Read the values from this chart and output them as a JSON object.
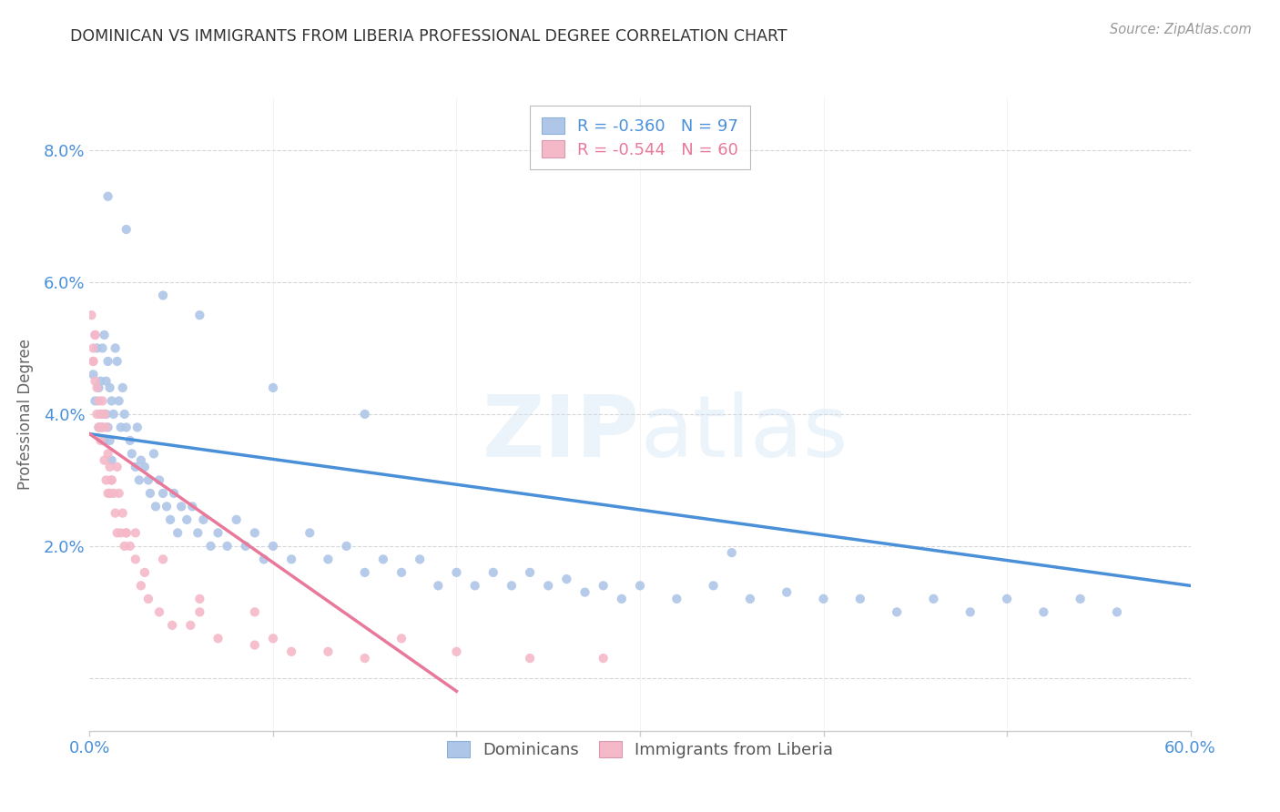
{
  "title": "DOMINICAN VS IMMIGRANTS FROM LIBERIA PROFESSIONAL DEGREE CORRELATION CHART",
  "source": "Source: ZipAtlas.com",
  "ylabel": "Professional Degree",
  "yticks": [
    0.0,
    0.02,
    0.04,
    0.06,
    0.08
  ],
  "ytick_labels": [
    "",
    "2.0%",
    "4.0%",
    "6.0%",
    "8.0%"
  ],
  "xmin": 0.0,
  "xmax": 0.6,
  "ymin": -0.008,
  "ymax": 0.088,
  "dominicans_color": "#aec6e8",
  "liberia_color": "#f4b8c8",
  "trend_dominicans_color": "#4a90d9",
  "trend_liberia_color": "#e8799a",
  "background_color": "#ffffff",
  "grid_color": "#cccccc",
  "axis_label_color": "#4a90d9",
  "watermark": "ZIPatlas",
  "dom_trend_x0": 0.0,
  "dom_trend_y0": 0.037,
  "dom_trend_x1": 0.6,
  "dom_trend_y1": 0.014,
  "lib_trend_x0": 0.0,
  "lib_trend_y0": 0.037,
  "lib_trend_x1": 0.2,
  "lib_trend_y1": -0.002,
  "dominicans_x": [
    0.002,
    0.003,
    0.004,
    0.005,
    0.005,
    0.006,
    0.006,
    0.007,
    0.007,
    0.008,
    0.008,
    0.009,
    0.009,
    0.01,
    0.01,
    0.011,
    0.011,
    0.012,
    0.012,
    0.013,
    0.014,
    0.015,
    0.016,
    0.017,
    0.018,
    0.019,
    0.02,
    0.022,
    0.023,
    0.025,
    0.026,
    0.027,
    0.028,
    0.03,
    0.032,
    0.033,
    0.035,
    0.036,
    0.038,
    0.04,
    0.042,
    0.044,
    0.046,
    0.048,
    0.05,
    0.053,
    0.056,
    0.059,
    0.062,
    0.066,
    0.07,
    0.075,
    0.08,
    0.085,
    0.09,
    0.095,
    0.1,
    0.11,
    0.12,
    0.13,
    0.14,
    0.15,
    0.16,
    0.17,
    0.18,
    0.19,
    0.2,
    0.21,
    0.22,
    0.23,
    0.24,
    0.25,
    0.26,
    0.27,
    0.28,
    0.29,
    0.3,
    0.32,
    0.34,
    0.36,
    0.38,
    0.4,
    0.42,
    0.44,
    0.46,
    0.48,
    0.5,
    0.52,
    0.54,
    0.56,
    0.01,
    0.02,
    0.04,
    0.06,
    0.1,
    0.15,
    0.35
  ],
  "dominicans_y": [
    0.046,
    0.042,
    0.05,
    0.038,
    0.044,
    0.045,
    0.04,
    0.05,
    0.038,
    0.052,
    0.036,
    0.045,
    0.04,
    0.048,
    0.038,
    0.044,
    0.036,
    0.042,
    0.033,
    0.04,
    0.05,
    0.048,
    0.042,
    0.038,
    0.044,
    0.04,
    0.038,
    0.036,
    0.034,
    0.032,
    0.038,
    0.03,
    0.033,
    0.032,
    0.03,
    0.028,
    0.034,
    0.026,
    0.03,
    0.028,
    0.026,
    0.024,
    0.028,
    0.022,
    0.026,
    0.024,
    0.026,
    0.022,
    0.024,
    0.02,
    0.022,
    0.02,
    0.024,
    0.02,
    0.022,
    0.018,
    0.02,
    0.018,
    0.022,
    0.018,
    0.02,
    0.016,
    0.018,
    0.016,
    0.018,
    0.014,
    0.016,
    0.014,
    0.016,
    0.014,
    0.016,
    0.014,
    0.015,
    0.013,
    0.014,
    0.012,
    0.014,
    0.012,
    0.014,
    0.012,
    0.013,
    0.012,
    0.012,
    0.01,
    0.012,
    0.01,
    0.012,
    0.01,
    0.012,
    0.01,
    0.073,
    0.068,
    0.058,
    0.055,
    0.044,
    0.04,
    0.019
  ],
  "liberia_x": [
    0.001,
    0.002,
    0.002,
    0.003,
    0.003,
    0.004,
    0.004,
    0.005,
    0.005,
    0.006,
    0.006,
    0.007,
    0.007,
    0.008,
    0.008,
    0.009,
    0.009,
    0.01,
    0.01,
    0.011,
    0.011,
    0.012,
    0.013,
    0.014,
    0.015,
    0.016,
    0.017,
    0.018,
    0.019,
    0.02,
    0.022,
    0.025,
    0.028,
    0.032,
    0.038,
    0.045,
    0.055,
    0.07,
    0.09,
    0.11,
    0.13,
    0.15,
    0.17,
    0.2,
    0.24,
    0.28,
    0.003,
    0.008,
    0.015,
    0.025,
    0.04,
    0.06,
    0.09,
    0.002,
    0.006,
    0.012,
    0.02,
    0.03,
    0.06,
    0.1
  ],
  "liberia_y": [
    0.055,
    0.05,
    0.048,
    0.052,
    0.045,
    0.044,
    0.04,
    0.042,
    0.038,
    0.04,
    0.036,
    0.042,
    0.038,
    0.04,
    0.033,
    0.038,
    0.03,
    0.034,
    0.028,
    0.032,
    0.028,
    0.03,
    0.028,
    0.025,
    0.022,
    0.028,
    0.022,
    0.025,
    0.02,
    0.022,
    0.02,
    0.018,
    0.014,
    0.012,
    0.01,
    0.008,
    0.008,
    0.006,
    0.005,
    0.004,
    0.004,
    0.003,
    0.006,
    0.004,
    0.003,
    0.003,
    0.052,
    0.04,
    0.032,
    0.022,
    0.018,
    0.012,
    0.01,
    0.048,
    0.038,
    0.03,
    0.022,
    0.016,
    0.01,
    0.006
  ]
}
